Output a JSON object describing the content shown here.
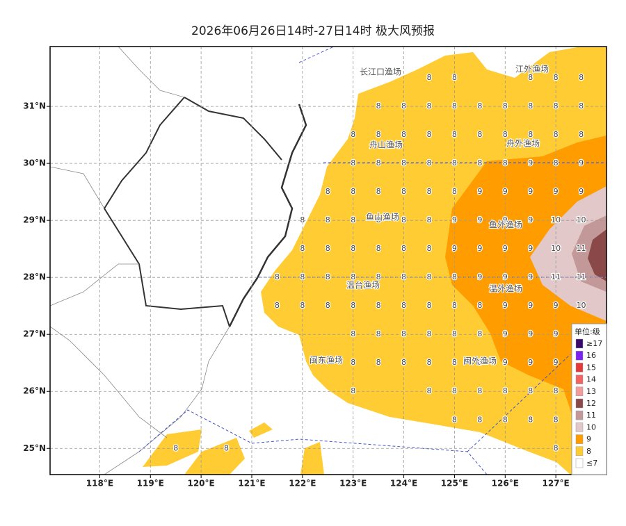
{
  "title": "2026年06月26日14时-27日14时 极大风预报",
  "lon_range": [
    117.02,
    128
  ],
  "lat_range": [
    24.54,
    32.05
  ],
  "lon_ticks": [
    {
      "value": 118,
      "label": "118°E"
    },
    {
      "value": 119,
      "label": "119°E"
    },
    {
      "value": 120,
      "label": "120°E"
    },
    {
      "value": 121,
      "label": "121°E"
    },
    {
      "value": 122,
      "label": "122°E"
    },
    {
      "value": 123,
      "label": "123°E"
    },
    {
      "value": 124,
      "label": "124°E"
    },
    {
      "value": 125,
      "label": "125°E"
    },
    {
      "value": 126,
      "label": "126°E"
    },
    {
      "value": 127,
      "label": "127°E"
    }
  ],
  "lat_ticks": [
    {
      "value": 25,
      "label": "25°N"
    },
    {
      "value": 26,
      "label": "26°N"
    },
    {
      "value": 27,
      "label": "27°N"
    },
    {
      "value": 28,
      "label": "28°N"
    },
    {
      "value": 29,
      "label": "29°N"
    },
    {
      "value": 30,
      "label": "30°N"
    },
    {
      "value": 31,
      "label": "31°N"
    }
  ],
  "fishery_areas": [
    "长江口渔场",
    "江外渔场",
    "舟山渔场",
    "舟外渔场",
    "鱼山渔场",
    "鱼外渔场",
    "温台渔场",
    "温外渔场",
    "闽东渔场",
    "闽外渔场"
  ],
  "wind_grid": {
    "lons": [
      119.5,
      120,
      120.5,
      121,
      121.5,
      122,
      122.5,
      123,
      123.5,
      124,
      124.5,
      125,
      125.5,
      126,
      126.5,
      127,
      127.5
    ],
    "lats": [
      31.5,
      31,
      30.5,
      30,
      29.5,
      29,
      28.5,
      28,
      27.5,
      27,
      26.5,
      26,
      25.5,
      25
    ],
    "values": [
      [
        null,
        null,
        null,
        null,
        null,
        null,
        null,
        null,
        null,
        null,
        8,
        8,
        null,
        null,
        8,
        8,
        8
      ],
      [
        null,
        null,
        null,
        null,
        null,
        null,
        null,
        null,
        8,
        8,
        8,
        8,
        8,
        8,
        8,
        8,
        8
      ],
      [
        null,
        null,
        null,
        null,
        null,
        null,
        null,
        8,
        8,
        8,
        8,
        8,
        8,
        8,
        8,
        8,
        8
      ],
      [
        null,
        null,
        null,
        null,
        null,
        null,
        null,
        8,
        8,
        8,
        8,
        8,
        8,
        8,
        9,
        8,
        9
      ],
      [
        null,
        null,
        null,
        null,
        null,
        null,
        8,
        8,
        8,
        8,
        8,
        8,
        9,
        9,
        9,
        9,
        9
      ],
      [
        null,
        null,
        null,
        null,
        null,
        8,
        8,
        8,
        8,
        8,
        8,
        9,
        9,
        9,
        9,
        10,
        10
      ],
      [
        null,
        null,
        null,
        null,
        null,
        8,
        8,
        8,
        8,
        8,
        8,
        9,
        9,
        9,
        9,
        10,
        11
      ],
      [
        null,
        null,
        null,
        null,
        8,
        8,
        8,
        8,
        8,
        8,
        8,
        8,
        9,
        9,
        9,
        11,
        11
      ],
      [
        null,
        null,
        null,
        null,
        8,
        8,
        8,
        8,
        8,
        8,
        8,
        8,
        8,
        9,
        9,
        9,
        10
      ],
      [
        null,
        null,
        null,
        null,
        null,
        null,
        null,
        8,
        8,
        8,
        8,
        8,
        8,
        9,
        9,
        9,
        null
      ],
      [
        null,
        null,
        null,
        null,
        null,
        null,
        null,
        8,
        8,
        8,
        8,
        8,
        8,
        9,
        9,
        9,
        null
      ],
      [
        null,
        null,
        null,
        null,
        null,
        null,
        null,
        8,
        null,
        null,
        8,
        8,
        8,
        8,
        8,
        8,
        null
      ],
      [
        null,
        null,
        null,
        null,
        null,
        null,
        null,
        null,
        null,
        null,
        null,
        8,
        8,
        8,
        8,
        8,
        null
      ],
      [
        8,
        null,
        8,
        null,
        null,
        null,
        null,
        null,
        null,
        null,
        null,
        null,
        null,
        null,
        null,
        8,
        null
      ]
    ]
  },
  "legend": {
    "title": "单位:级",
    "items": [
      {
        "label": "≥17",
        "color": "#3a0a6a"
      },
      {
        "label": "16",
        "color": "#7b22ee"
      },
      {
        "label": "15",
        "color": "#e23a3a"
      },
      {
        "label": "14",
        "color": "#ef6464"
      },
      {
        "label": "13",
        "color": "#f29c9c"
      },
      {
        "label": "12",
        "color": "#8a4848"
      },
      {
        "label": "11",
        "color": "#c39898"
      },
      {
        "label": "10",
        "color": "#e2c8c8"
      },
      {
        "label": "9",
        "color": "#ff9c00"
      },
      {
        "label": "8",
        "color": "#ffcc33"
      },
      {
        "label": "≤7",
        "color": "#ffffff"
      }
    ]
  }
}
